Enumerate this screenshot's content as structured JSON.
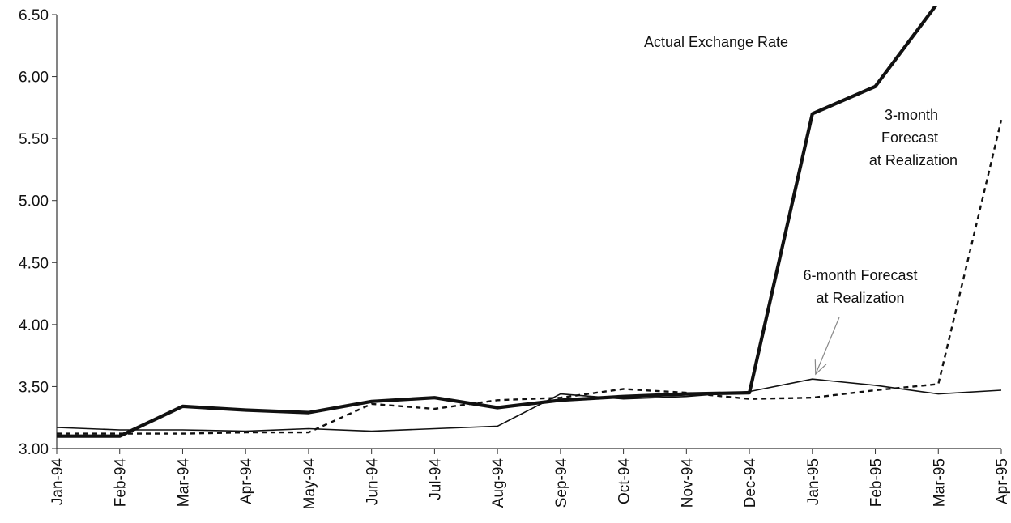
{
  "chart_data": {
    "type": "line",
    "title": "",
    "xlabel": "",
    "ylabel": "",
    "categories": [
      "Jan-94",
      "Feb-94",
      "Mar-94",
      "Apr-94",
      "May-94",
      "Jun-94",
      "Jul-94",
      "Aug-94",
      "Sep-94",
      "Oct-94",
      "Nov-94",
      "Dec-94",
      "Jan-95",
      "Feb-95",
      "Mar-95",
      "Apr-95"
    ],
    "ylim": [
      3.0,
      6.5
    ],
    "yticks": [
      "3.00",
      "3.50",
      "4.00",
      "4.50",
      "5.00",
      "5.50",
      "6.00",
      "6.50"
    ],
    "yticks_values": [
      3.0,
      3.5,
      4.0,
      4.5,
      5.0,
      5.5,
      6.0,
      6.5
    ],
    "legend": "none",
    "grid": "none",
    "series": [
      {
        "key": "actual",
        "values": [
          3.1,
          3.1,
          3.34,
          3.31,
          3.29,
          3.38,
          3.41,
          3.33,
          3.39,
          3.42,
          3.44,
          3.45,
          5.7,
          5.92,
          6.6,
          null
        ],
        "color": "#111111",
        "style": "thick-solid"
      },
      {
        "key": "three_month",
        "values": [
          3.12,
          3.12,
          3.12,
          3.13,
          3.13,
          3.36,
          3.32,
          3.39,
          3.41,
          3.48,
          3.45,
          3.4,
          3.41,
          3.47,
          3.52,
          5.65
        ],
        "color": "#111111",
        "style": "dashed"
      },
      {
        "key": "six_month",
        "values": [
          3.17,
          3.15,
          3.15,
          3.14,
          3.16,
          3.14,
          3.16,
          3.18,
          3.44,
          3.4,
          3.42,
          3.46,
          3.56,
          3.51,
          3.44,
          3.47
        ],
        "color": "#111111",
        "style": "thin-solid"
      }
    ],
    "annotations": [
      {
        "key": "actual",
        "lines": [
          "Actual Exchange Rate"
        ]
      },
      {
        "key": "three_month",
        "lines": [
          "3-month",
          "Forecast",
          "at Realization"
        ]
      },
      {
        "key": "six_month",
        "lines": [
          "6-month Forecast",
          "at Realization"
        ]
      }
    ]
  }
}
